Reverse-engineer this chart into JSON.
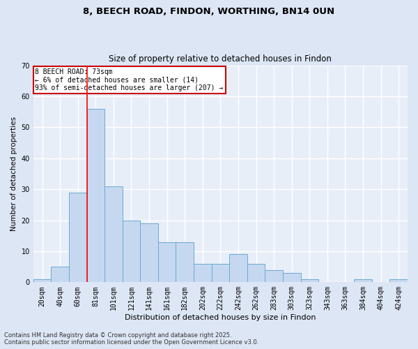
{
  "title_line1": "8, BEECH ROAD, FINDON, WORTHING, BN14 0UN",
  "title_line2": "Size of property relative to detached houses in Findon",
  "xlabel": "Distribution of detached houses by size in Findon",
  "ylabel": "Number of detached properties",
  "categories": [
    "20sqm",
    "40sqm",
    "60sqm",
    "81sqm",
    "101sqm",
    "121sqm",
    "141sqm",
    "161sqm",
    "182sqm",
    "202sqm",
    "222sqm",
    "242sqm",
    "262sqm",
    "283sqm",
    "303sqm",
    "323sqm",
    "343sqm",
    "363sqm",
    "384sqm",
    "404sqm",
    "424sqm"
  ],
  "values": [
    1,
    5,
    29,
    56,
    31,
    20,
    19,
    13,
    13,
    6,
    6,
    9,
    6,
    4,
    3,
    1,
    0,
    0,
    1,
    0,
    1
  ],
  "bar_color": "#c5d8f0",
  "bar_edge_color": "#6aaad4",
  "red_line_x": 2.5,
  "annotation_text": "8 BEECH ROAD: 73sqm\n← 6% of detached houses are smaller (14)\n93% of semi-detached houses are larger (207) →",
  "annotation_box_color": "#ffffff",
  "annotation_box_edge_color": "#cc0000",
  "ylim": [
    0,
    70
  ],
  "yticks": [
    0,
    10,
    20,
    30,
    40,
    50,
    60,
    70
  ],
  "background_color": "#e8eef8",
  "fig_background_color": "#dce6f5",
  "grid_color": "#ffffff",
  "footer_line1": "Contains HM Land Registry data © Crown copyright and database right 2025.",
  "footer_line2": "Contains public sector information licensed under the Open Government Licence v3.0."
}
